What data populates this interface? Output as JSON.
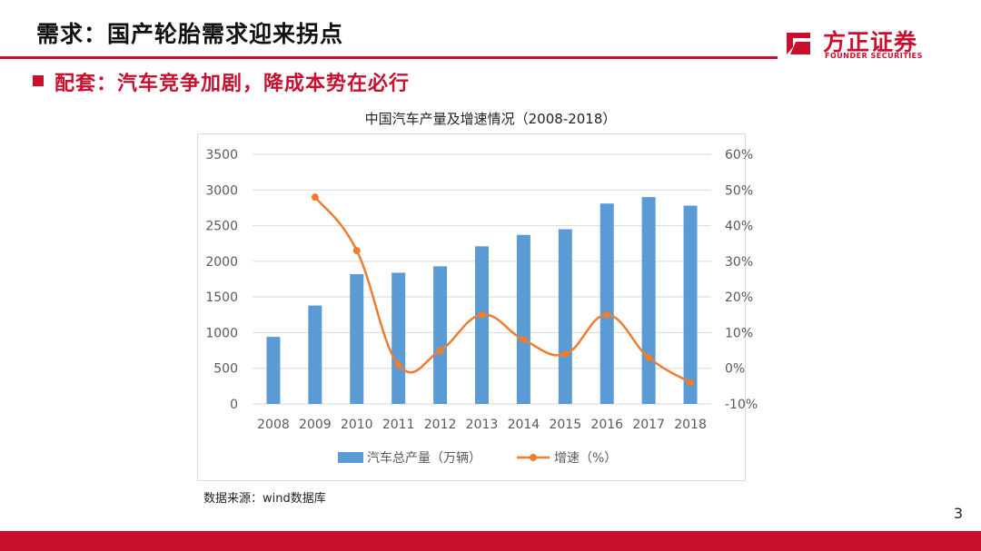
{
  "header": {
    "title": "需求：国产轮胎需求迎来拐点",
    "subtitle": "配套：汽车竞争加剧，降成本势在必行"
  },
  "brand": {
    "name_cn": "方正证券",
    "name_en": "FOUNDER SECURITIES",
    "color": "#c8102e"
  },
  "footer": {
    "source": "数据来源：wind数据库",
    "page_number": "3"
  },
  "chart_data": {
    "type": "bar",
    "title": "中国汽车产量及增速情况（2008-2018）",
    "categories": [
      "2008",
      "2009",
      "2010",
      "2011",
      "2012",
      "2013",
      "2014",
      "2015",
      "2016",
      "2017",
      "2018"
    ],
    "series": [
      {
        "name": "汽车总产量（万辆）",
        "type": "bar",
        "axis": "left",
        "color": "#5b9bd5",
        "values": [
          940,
          1380,
          1820,
          1840,
          1930,
          2210,
          2370,
          2450,
          2810,
          2900,
          2780
        ]
      },
      {
        "name": "增速（%）",
        "type": "line",
        "axis": "right",
        "color": "#ed7d31",
        "values": [
          null,
          48,
          33,
          1,
          5,
          15,
          8,
          4,
          15,
          3,
          -4
        ]
      }
    ],
    "y_left": {
      "min": 0,
      "max": 3500,
      "ticks": [
        "0",
        "500",
        "1000",
        "1500",
        "2000",
        "2500",
        "3000",
        "3500"
      ]
    },
    "y_right": {
      "min": -10,
      "max": 60,
      "ticks": [
        "-10%",
        "0%",
        "10%",
        "20%",
        "30%",
        "40%",
        "50%",
        "60%"
      ]
    },
    "grid": true,
    "legend": "bottom"
  }
}
